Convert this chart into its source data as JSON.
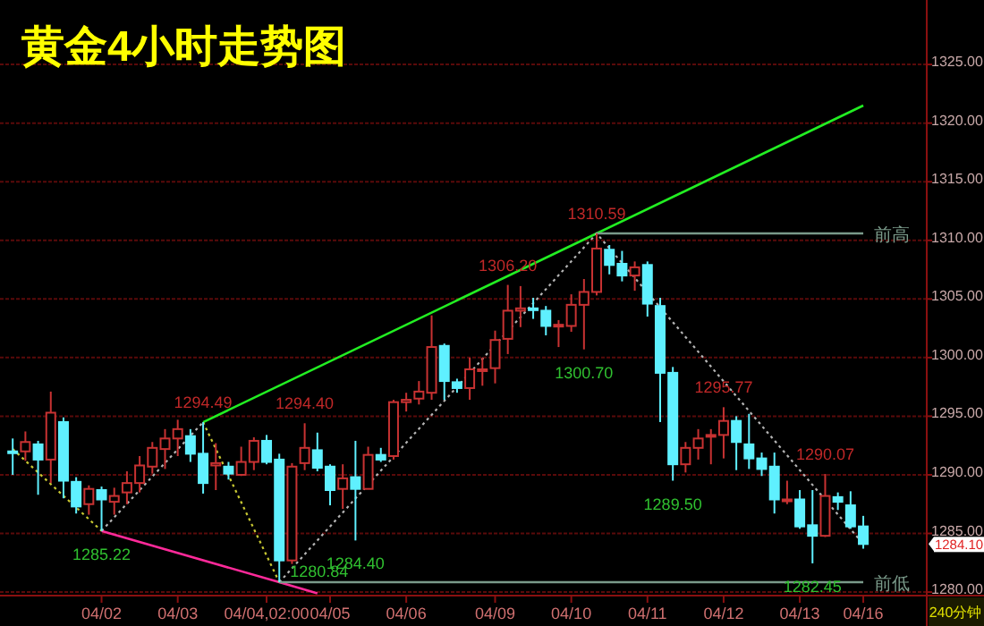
{
  "chart_data": {
    "type": "candlestick",
    "title": "黄金4小时走势图",
    "categories": [
      null,
      null,
      null,
      null,
      null,
      null,
      null,
      "04/02",
      null,
      null,
      null,
      null,
      null,
      "04/03",
      null,
      null,
      null,
      null,
      null,
      null,
      "04/04,02:00",
      null,
      null,
      null,
      null,
      "04/05",
      null,
      null,
      null,
      null,
      null,
      "04/06",
      null,
      null,
      null,
      null,
      null,
      null,
      "04/09",
      null,
      null,
      null,
      null,
      null,
      "04/10",
      null,
      null,
      null,
      null,
      null,
      "04/11",
      null,
      null,
      null,
      null,
      null,
      "04/12",
      null,
      null,
      null,
      null,
      null,
      "04/13",
      null,
      null,
      null,
      null,
      "04/16"
    ],
    "ohlc": [
      [
        1292.0,
        1293.1,
        1290.0,
        1291.9
      ],
      [
        1292.0,
        1293.7,
        1291.2,
        1292.8
      ],
      [
        1292.6,
        1292.9,
        1288.3,
        1291.3
      ],
      [
        1291.3,
        1297.1,
        1289.3,
        1295.3
      ],
      [
        1294.5,
        1294.9,
        1288.0,
        1289.5
      ],
      [
        1289.4,
        1289.8,
        1286.7,
        1287.3
      ],
      [
        1287.5,
        1289.1,
        1286.6,
        1288.8
      ],
      [
        1288.7,
        1289.0,
        1285.22,
        1287.9
      ],
      [
        1287.7,
        1288.9,
        1286.6,
        1288.2
      ],
      [
        1288.5,
        1290.3,
        1287.5,
        1289.3
      ],
      [
        1289.3,
        1291.6,
        1288.5,
        1290.8
      ],
      [
        1290.7,
        1292.8,
        1290.1,
        1292.3
      ],
      [
        1292.2,
        1293.9,
        1290.5,
        1293.1
      ],
      [
        1293.1,
        1294.7,
        1291.6,
        1293.9
      ],
      [
        1293.3,
        1293.9,
        1291.1,
        1291.8
      ],
      [
        1291.8,
        1294.49,
        1288.4,
        1289.3
      ],
      [
        1290.8,
        1292.7,
        1288.7,
        1291.0
      ],
      [
        1290.7,
        1291.1,
        1289.6,
        1290.1
      ],
      [
        1290.0,
        1292.4,
        1289.9,
        1291.1
      ],
      [
        1291.1,
        1293.2,
        1290.4,
        1292.9
      ],
      [
        1292.9,
        1293.4,
        1290.9,
        1291.1
      ],
      [
        1291.3,
        1291.8,
        1280.84,
        1282.7
      ],
      [
        1282.7,
        1291.0,
        1282.4,
        1290.7
      ],
      [
        1291.0,
        1294.4,
        1290.4,
        1292.3
      ],
      [
        1292.1,
        1293.6,
        1290.3,
        1290.6
      ],
      [
        1290.7,
        1290.9,
        1287.4,
        1288.7
      ],
      [
        1288.8,
        1290.9,
        1287.1,
        1289.7
      ],
      [
        1289.8,
        1292.9,
        1284.4,
        1288.8
      ],
      [
        1288.8,
        1292.4,
        1288.8,
        1291.7
      ],
      [
        1291.7,
        1292.3,
        1291.1,
        1291.3
      ],
      [
        1291.6,
        1296.4,
        1291.3,
        1296.2
      ],
      [
        1296.2,
        1297.0,
        1295.4,
        1296.4
      ],
      [
        1296.5,
        1298.0,
        1296.0,
        1297.1
      ],
      [
        1297.0,
        1303.6,
        1296.4,
        1300.9
      ],
      [
        1301.0,
        1301.2,
        1296.4,
        1298.0
      ],
      [
        1297.9,
        1298.2,
        1297.0,
        1297.4
      ],
      [
        1297.4,
        1300.0,
        1296.4,
        1299.0
      ],
      [
        1298.9,
        1300.0,
        1297.6,
        1299.0
      ],
      [
        1299.1,
        1302.3,
        1297.8,
        1301.5
      ],
      [
        1301.6,
        1306.2,
        1300.3,
        1304.0
      ],
      [
        1304.0,
        1306.1,
        1302.6,
        1304.2
      ],
      [
        1304.2,
        1305.1,
        1303.3,
        1304.1
      ],
      [
        1304.0,
        1304.4,
        1301.9,
        1302.7
      ],
      [
        1302.7,
        1303.2,
        1300.9,
        1302.8
      ],
      [
        1302.7,
        1305.4,
        1302.2,
        1304.5
      ],
      [
        1304.5,
        1306.7,
        1300.7,
        1305.6
      ],
      [
        1305.6,
        1310.59,
        1305.3,
        1309.3
      ],
      [
        1309.2,
        1309.6,
        1307.1,
        1307.9
      ],
      [
        1308.0,
        1309.1,
        1306.5,
        1307.0
      ],
      [
        1307.0,
        1308.2,
        1305.7,
        1307.7
      ],
      [
        1307.9,
        1308.2,
        1303.5,
        1304.6
      ],
      [
        1304.4,
        1305.1,
        1294.5,
        1298.7
      ],
      [
        1298.7,
        1299.2,
        1289.5,
        1290.9
      ],
      [
        1290.9,
        1292.8,
        1290.2,
        1292.3
      ],
      [
        1292.3,
        1293.9,
        1291.3,
        1293.1
      ],
      [
        1293.3,
        1293.9,
        1290.9,
        1293.4
      ],
      [
        1293.4,
        1295.77,
        1291.4,
        1294.6
      ],
      [
        1294.6,
        1295.0,
        1290.4,
        1292.8
      ],
      [
        1292.6,
        1295.2,
        1290.5,
        1291.4
      ],
      [
        1291.4,
        1291.9,
        1289.9,
        1290.5
      ],
      [
        1290.7,
        1291.9,
        1286.7,
        1287.9
      ],
      [
        1287.8,
        1289.5,
        1287.5,
        1287.9
      ],
      [
        1287.9,
        1288.7,
        1285.4,
        1285.6
      ],
      [
        1285.7,
        1288.7,
        1282.45,
        1284.8
      ],
      [
        1284.8,
        1290.07,
        1284.7,
        1288.2
      ],
      [
        1288.1,
        1288.5,
        1287.0,
        1287.7
      ],
      [
        1287.4,
        1288.6,
        1285.4,
        1285.6
      ],
      [
        1285.6,
        1286.5,
        1283.7,
        1284.1
      ]
    ],
    "colors": [
      "#5ff0ff",
      "#c83232",
      "#5ff0ff",
      "#c83232",
      "#5ff0ff",
      "#5ff0ff",
      "#c83232",
      "#5ff0ff",
      "#c83232",
      "#c83232",
      "#c83232",
      "#c83232",
      "#c83232",
      "#c83232",
      "#5ff0ff",
      "#5ff0ff",
      "#c83232",
      "#5ff0ff",
      "#c83232",
      "#c83232",
      "#5ff0ff",
      "#5ff0ff",
      "#c83232",
      "#c83232",
      "#5ff0ff",
      "#5ff0ff",
      "#c83232",
      "#5ff0ff",
      "#c83232",
      "#5ff0ff",
      "#c83232",
      "#c83232",
      "#c83232",
      "#c83232",
      "#5ff0ff",
      "#5ff0ff",
      "#c83232",
      "#c83232",
      "#c83232",
      "#c83232",
      "#c83232",
      "#5ff0ff",
      "#5ff0ff",
      "#c83232",
      "#c83232",
      "#c83232",
      "#c83232",
      "#5ff0ff",
      "#5ff0ff",
      "#c83232",
      "#5ff0ff",
      "#5ff0ff",
      "#5ff0ff",
      "#c83232",
      "#c83232",
      "#c83232",
      "#c83232",
      "#5ff0ff",
      "#5ff0ff",
      "#5ff0ff",
      "#5ff0ff",
      "#c83232",
      "#5ff0ff",
      "#5ff0ff",
      "#c83232",
      "#5ff0ff",
      "#5ff0ff",
      "#5ff0ff"
    ],
    "ylim": [
      1279.7,
      1330.5
    ],
    "yticks": [
      {
        "value": 1280,
        "label": "1280.00"
      },
      {
        "value": 1285,
        "label": "1285.00"
      },
      {
        "value": 1290,
        "label": "1290.00"
      },
      {
        "value": 1295,
        "label": "1295.00"
      },
      {
        "value": 1300,
        "label": "1300.00"
      },
      {
        "value": 1305,
        "label": "1305.00"
      },
      {
        "value": 1310,
        "label": "1310.00"
      },
      {
        "value": 1315,
        "label": "1315.00"
      },
      {
        "value": 1320,
        "label": "1320.00"
      },
      {
        "value": 1325,
        "label": "1325.00"
      }
    ],
    "grid": "y",
    "series": [
      {
        "type": "line",
        "color": "#22ee22",
        "line_style": "solid",
        "values": [
          null,
          null,
          null,
          null,
          null,
          null,
          null,
          null,
          null,
          null,
          null,
          null,
          null,
          null,
          null,
          1294.49,
          null,
          null,
          null,
          null,
          null,
          null,
          null,
          null,
          null,
          null,
          null,
          null,
          null,
          null,
          null,
          null,
          null,
          null,
          null,
          null,
          null,
          null,
          null,
          null,
          null,
          null,
          null,
          null,
          null,
          null,
          1310.59,
          null,
          null,
          null,
          null,
          null,
          null,
          null,
          null,
          null,
          null,
          null,
          null,
          null,
          null,
          null,
          null,
          null,
          null,
          null,
          null,
          1321.5
        ]
      },
      {
        "type": "line",
        "color": "#ff2a9a",
        "line_style": "solid",
        "values": [
          null,
          null,
          null,
          null,
          null,
          null,
          null,
          1285.22,
          null,
          null,
          null,
          null,
          null,
          null,
          null,
          null,
          null,
          null,
          null,
          null,
          null,
          1280.84,
          null,
          null,
          1279.9,
          null,
          null,
          null,
          null,
          null,
          null,
          null,
          null,
          null,
          null,
          null,
          null,
          null,
          null,
          null,
          null,
          null,
          null,
          null,
          null,
          null,
          null,
          null,
          null,
          null,
          null,
          null,
          null,
          null,
          null,
          null,
          null,
          null,
          null,
          null,
          null,
          null,
          null,
          null,
          null,
          null,
          null,
          null
        ]
      },
      {
        "type": "line",
        "color": "#c8c832",
        "line_style": "dotted",
        "values": [
          1292.2,
          null,
          null,
          null,
          null,
          null,
          null,
          1285.22,
          null,
          null,
          null,
          null,
          null,
          null,
          null,
          null,
          null,
          null,
          null,
          null,
          null,
          null,
          null,
          null,
          null,
          null,
          null,
          null,
          null,
          null,
          null,
          null,
          null,
          null,
          null,
          null,
          null,
          null,
          null,
          null,
          null,
          null,
          null,
          null,
          null,
          null,
          null,
          null,
          null,
          null,
          null,
          null,
          null,
          null,
          null,
          null,
          null,
          null,
          null,
          null,
          null,
          null,
          null,
          null,
          null,
          null,
          null,
          null
        ]
      },
      {
        "type": "line",
        "color": "#b4b4b4",
        "line_style": "dotted",
        "values": [
          null,
          null,
          null,
          null,
          null,
          null,
          null,
          1285.22,
          null,
          null,
          null,
          null,
          null,
          null,
          null,
          1294.49,
          null,
          null,
          null,
          null,
          null,
          null,
          null,
          null,
          null,
          null,
          null,
          null,
          null,
          null,
          null,
          null,
          null,
          null,
          null,
          null,
          null,
          null,
          null,
          null,
          null,
          null,
          null,
          null,
          null,
          null,
          null,
          null,
          null,
          null,
          null,
          null,
          null,
          null,
          null,
          null,
          null,
          null,
          null,
          null,
          null,
          null,
          null,
          null,
          null,
          null,
          null,
          null
        ]
      },
      {
        "type": "line",
        "color": "#c8c832",
        "line_style": "dotted",
        "values": [
          null,
          null,
          null,
          null,
          null,
          null,
          null,
          null,
          null,
          null,
          null,
          null,
          null,
          null,
          null,
          1294.49,
          null,
          null,
          null,
          null,
          null,
          1280.84,
          null,
          null,
          null,
          null,
          null,
          null,
          null,
          null,
          null,
          null,
          null,
          null,
          null,
          null,
          null,
          null,
          null,
          null,
          null,
          null,
          null,
          null,
          null,
          null,
          null,
          null,
          null,
          null,
          null,
          null,
          null,
          null,
          null,
          null,
          null,
          null,
          null,
          null,
          null,
          null,
          null,
          null,
          null,
          null,
          null,
          null
        ]
      },
      {
        "type": "line",
        "color": "#b4b4b4",
        "line_style": "dotted",
        "values": [
          null,
          null,
          null,
          null,
          null,
          null,
          null,
          null,
          null,
          null,
          null,
          null,
          null,
          null,
          null,
          null,
          null,
          null,
          null,
          null,
          null,
          1280.84,
          null,
          null,
          null,
          null,
          null,
          null,
          null,
          null,
          null,
          null,
          null,
          null,
          null,
          null,
          null,
          null,
          null,
          null,
          null,
          null,
          null,
          null,
          null,
          null,
          1310.59,
          null,
          null,
          null,
          null,
          null,
          null,
          null,
          null,
          null,
          null,
          null,
          null,
          null,
          null,
          null,
          null,
          null,
          null,
          null,
          null,
          1284.1
        ]
      },
      {
        "type": "line",
        "name": "前高",
        "color": "#7a9a8a",
        "line_style": "solid",
        "values": [
          null,
          null,
          null,
          null,
          null,
          null,
          null,
          null,
          null,
          null,
          null,
          null,
          null,
          null,
          null,
          null,
          null,
          null,
          null,
          null,
          null,
          null,
          null,
          null,
          null,
          null,
          null,
          null,
          null,
          null,
          null,
          null,
          null,
          null,
          null,
          null,
          null,
          null,
          null,
          null,
          null,
          null,
          null,
          null,
          null,
          null,
          1310.59,
          null,
          null,
          null,
          null,
          null,
          null,
          null,
          null,
          null,
          null,
          null,
          null,
          null,
          null,
          null,
          null,
          null,
          null,
          null,
          null,
          1310.59
        ]
      },
      {
        "type": "line",
        "name": "前低",
        "color": "#7a9a8a",
        "line_style": "solid",
        "values": [
          null,
          null,
          null,
          null,
          null,
          null,
          null,
          null,
          null,
          null,
          null,
          null,
          null,
          null,
          null,
          null,
          null,
          null,
          null,
          null,
          null,
          1280.84,
          null,
          null,
          null,
          null,
          null,
          null,
          null,
          null,
          null,
          null,
          null,
          null,
          null,
          null,
          null,
          null,
          null,
          null,
          null,
          null,
          null,
          null,
          null,
          null,
          null,
          null,
          null,
          null,
          null,
          null,
          null,
          null,
          null,
          null,
          null,
          null,
          null,
          null,
          null,
          null,
          null,
          null,
          null,
          null,
          null,
          1280.84
        ]
      }
    ],
    "annotations": [
      {
        "text": "1294.49",
        "y": 1294.49
      },
      {
        "text": "1294.40",
        "y": 1294.4
      },
      {
        "text": "1306.20",
        "y": 1306.2
      },
      {
        "text": "1310.59",
        "y": 1310.59
      },
      {
        "text": "1295.77",
        "y": 1295.77
      },
      {
        "text": "1290.07",
        "y": 1290.07
      },
      {
        "text": "1285.22",
        "y": 1285.22
      },
      {
        "text": "1284.40",
        "y": 1284.4
      },
      {
        "text": "1300.70",
        "y": 1300.7
      },
      {
        "text": "1289.50",
        "y": 1289.5
      },
      {
        "text": "1282.45",
        "y": 1282.45
      },
      {
        "text": "1280.84",
        "y": 1280.84
      },
      "1284.10",
      "240分钟"
    ]
  }
}
